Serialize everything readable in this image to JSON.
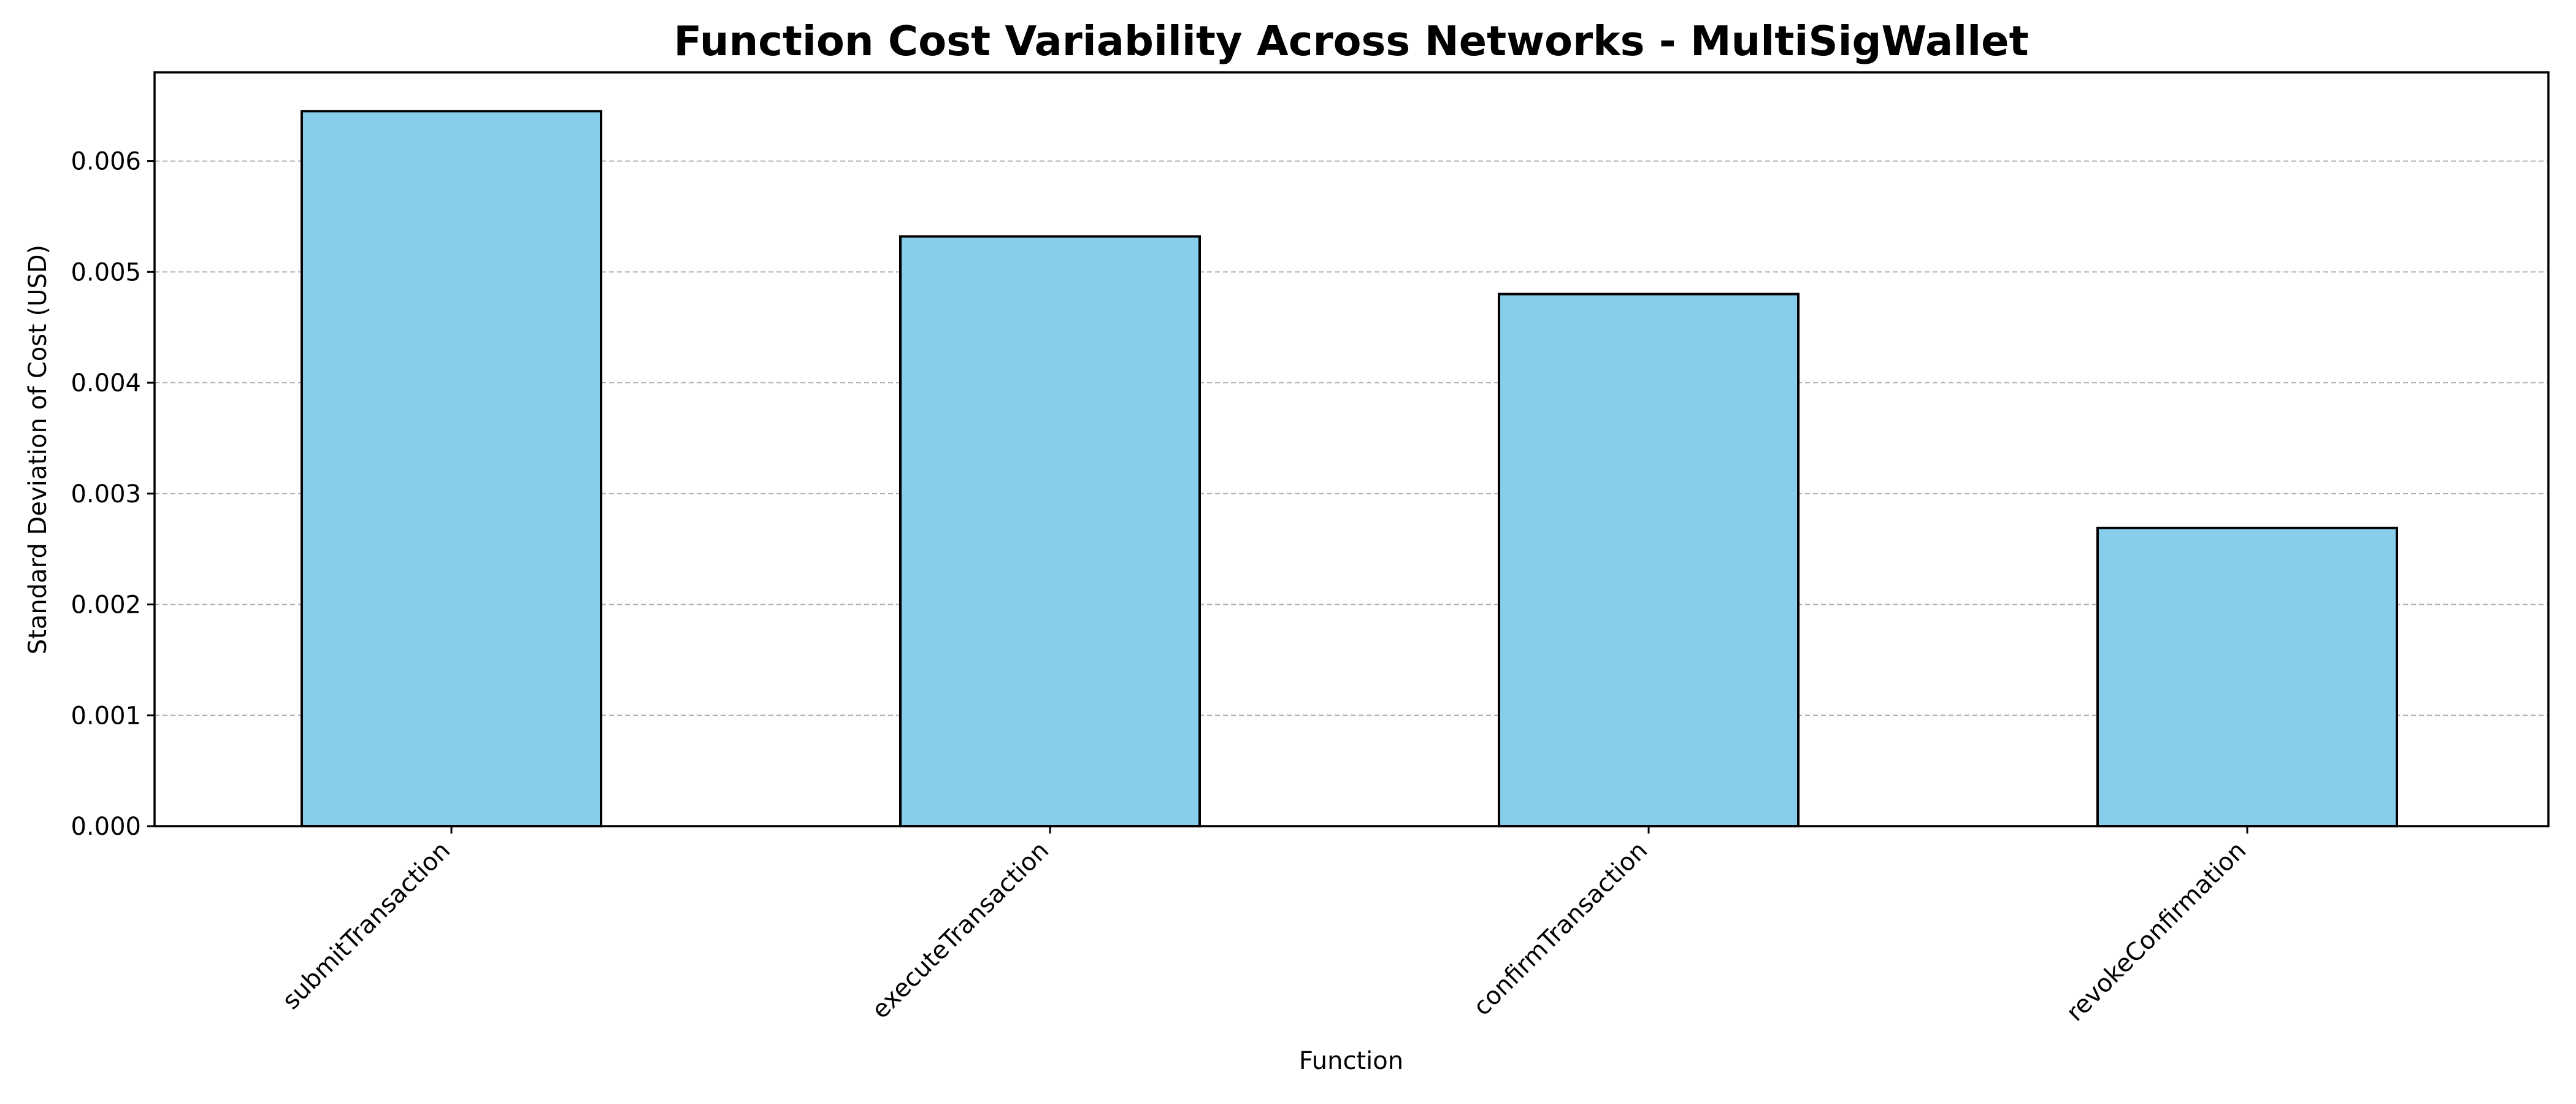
{
  "chart_data": {
    "type": "bar",
    "title": "Function Cost Variability Across Networks - MultiSigWallet",
    "xlabel": "Function",
    "ylabel": "Standard Deviation of Cost (USD)",
    "categories": [
      "submitTransaction",
      "executeTransaction",
      "confirmTransaction",
      "revokeConfirmation"
    ],
    "values": [
      0.00645,
      0.00532,
      0.0048,
      0.00269
    ],
    "ylim": [
      0,
      0.0068
    ],
    "yticks": [
      0.0,
      0.001,
      0.002,
      0.003,
      0.004,
      0.005,
      0.006
    ],
    "ytick_labels": [
      "0.000",
      "0.001",
      "0.002",
      "0.003",
      "0.004",
      "0.005",
      "0.006"
    ],
    "grid": "y-dashed",
    "bar_color": "#87CEEB",
    "edge_color": "#000000"
  }
}
